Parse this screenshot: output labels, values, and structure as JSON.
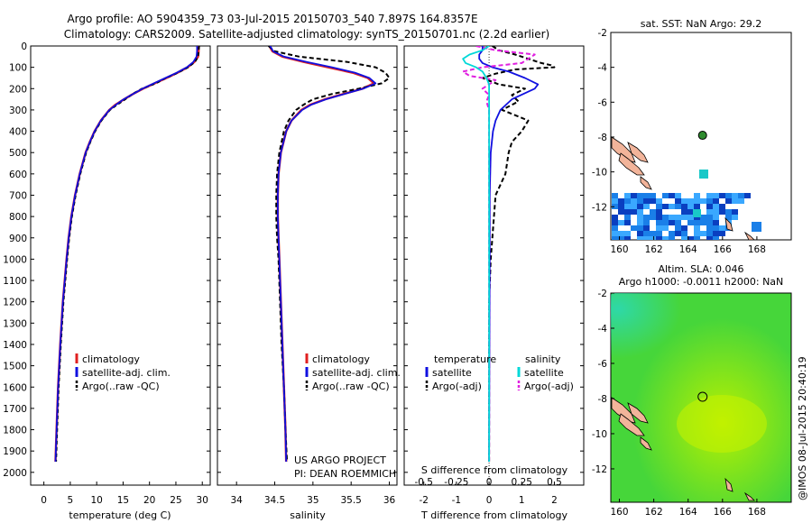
{
  "header": {
    "line1": "Argo profile: AO 5904359_73 03-Jul-2015 20150703_540 7.897S 164.8357E",
    "line2": "Climatology: CARS2009. Satellite-adjusted climatology: synTS_20150701.nc (2.2d earlier)"
  },
  "watermark": "@IMOS 08-Jul-2015 20:40:19",
  "project_note": {
    "line1": "US ARGO PROJECT",
    "line2": "PI: DEAN ROEMMICH"
  },
  "colors": {
    "climatology": "#e02020",
    "satellite": "#1010e0",
    "argo": "#000000",
    "salinity_satellite": "#00d8d8",
    "salinity_argo": "#e020e0",
    "sst_dark": "#0a3fc0",
    "sst_mid": "#1a7fe8",
    "sst_light": "#3aa8ff",
    "sst_cyan": "#19c8c8",
    "land": "#f2b49a",
    "float_marker": "#2e8b2e"
  },
  "depth_axis": {
    "ticks": [
      0,
      100,
      200,
      300,
      400,
      500,
      600,
      700,
      800,
      900,
      1000,
      1100,
      1200,
      1300,
      1400,
      1500,
      1600,
      1700,
      1800,
      1900,
      2000
    ],
    "range": [
      0,
      2060
    ]
  },
  "chart_data": [
    {
      "type": "line",
      "xlabel": "temperature (deg C)",
      "xticks": [
        "0",
        "5",
        "10",
        "15",
        "20",
        "25",
        "30"
      ],
      "xlim": [
        -2.5,
        31.5
      ],
      "ylim": [
        0,
        2060
      ],
      "legend": [
        "climatology",
        "satellite-adj. clim.",
        "Argo(..raw -QC)"
      ],
      "series": [
        {
          "name": "climatology",
          "depth": [
            0,
            25,
            50,
            75,
            100,
            125,
            150,
            175,
            200,
            225,
            250,
            275,
            300,
            350,
            400,
            450,
            500,
            600,
            700,
            800,
            900,
            1000,
            1200,
            1400,
            1600,
            1800,
            1950
          ],
          "values": [
            29.3,
            29.3,
            29.2,
            28.5,
            27.2,
            25.3,
            23.2,
            21.0,
            18.8,
            16.9,
            15.2,
            13.6,
            12.4,
            10.8,
            9.6,
            8.7,
            7.9,
            6.8,
            5.9,
            5.2,
            4.7,
            4.3,
            3.6,
            3.1,
            2.7,
            2.4,
            2.2
          ]
        },
        {
          "name": "satellite-adj. clim.",
          "depth": [
            0,
            25,
            50,
            75,
            100,
            125,
            150,
            175,
            200,
            225,
            250,
            275,
            300,
            350,
            400,
            450,
            500,
            600,
            700,
            800,
            900,
            1000,
            1200,
            1400,
            1600,
            1800,
            1950
          ],
          "values": [
            29.0,
            29.0,
            28.9,
            28.3,
            27.1,
            25.2,
            23.0,
            20.8,
            18.7,
            16.9,
            15.1,
            13.7,
            12.4,
            10.8,
            9.6,
            8.7,
            7.9,
            6.8,
            5.9,
            5.2,
            4.7,
            4.3,
            3.6,
            3.1,
            2.7,
            2.4,
            2.2
          ]
        },
        {
          "name": "Argo(..raw -QC)",
          "depth": [
            0,
            25,
            50,
            75,
            100,
            125,
            150,
            175,
            200,
            225,
            250,
            275,
            300,
            350,
            400,
            450,
            500,
            600,
            700,
            800,
            900,
            1000,
            1200,
            1400,
            1600,
            1800,
            1950
          ],
          "values": [
            29.4,
            29.3,
            29.2,
            28.6,
            27.3,
            25.4,
            23.1,
            21.2,
            18.6,
            16.8,
            15.4,
            13.9,
            12.5,
            10.9,
            9.7,
            8.8,
            8.0,
            6.9,
            6.0,
            5.3,
            4.8,
            4.4,
            3.7,
            3.2,
            2.8,
            2.5,
            2.3
          ]
        }
      ]
    },
    {
      "type": "line",
      "xlabel": "salinity",
      "xticks": [
        "34",
        "34.5",
        "35",
        "35.5",
        "36"
      ],
      "xlim": [
        33.75,
        36.1
      ],
      "ylim": [
        0,
        2060
      ],
      "legend": [
        "climatology",
        "satellite-adj. clim.",
        "Argo(..raw -QC)"
      ],
      "series": [
        {
          "name": "climatology",
          "depth": [
            0,
            25,
            50,
            75,
            100,
            125,
            150,
            175,
            200,
            225,
            250,
            275,
            300,
            350,
            400,
            500,
            600,
            700,
            800,
            900,
            1000,
            1200,
            1400,
            1600,
            1800,
            1950
          ],
          "values": [
            34.43,
            34.47,
            34.6,
            34.88,
            35.2,
            35.52,
            35.72,
            35.8,
            35.65,
            35.4,
            35.16,
            34.97,
            34.85,
            34.72,
            34.65,
            34.58,
            34.55,
            34.54,
            34.54,
            34.55,
            34.56,
            34.58,
            34.6,
            34.62,
            34.64,
            34.65
          ]
        },
        {
          "name": "satellite-adj. clim.",
          "depth": [
            0,
            25,
            50,
            75,
            100,
            125,
            150,
            175,
            200,
            225,
            250,
            275,
            300,
            350,
            400,
            500,
            600,
            700,
            800,
            900,
            1000,
            1200,
            1400,
            1600,
            1800,
            1950
          ],
          "values": [
            34.44,
            34.48,
            34.62,
            34.92,
            35.25,
            35.55,
            35.74,
            35.82,
            35.66,
            35.41,
            35.17,
            34.98,
            34.86,
            34.72,
            34.65,
            34.58,
            34.55,
            34.54,
            34.54,
            34.55,
            34.56,
            34.58,
            34.6,
            34.62,
            34.64,
            34.65
          ]
        },
        {
          "name": "Argo(..raw -QC)",
          "depth": [
            0,
            25,
            50,
            75,
            100,
            125,
            150,
            175,
            200,
            225,
            250,
            275,
            300,
            350,
            400,
            500,
            600,
            700,
            800,
            900,
            1000,
            1200,
            1400,
            1600,
            1800,
            1950
          ],
          "values": [
            34.42,
            34.5,
            34.82,
            35.45,
            35.82,
            35.95,
            36.0,
            35.9,
            35.6,
            35.25,
            35.0,
            34.88,
            34.78,
            34.68,
            34.62,
            34.56,
            34.53,
            34.52,
            34.52,
            34.53,
            34.55,
            34.57,
            34.59,
            34.62,
            34.64,
            34.66
          ]
        }
      ]
    },
    {
      "type": "line",
      "xlabel": "T difference from climatology",
      "xlabel2": "S difference from climatology",
      "xticks": [
        "-2",
        "-1",
        "0",
        "1",
        "2"
      ],
      "xticks2": [
        "-0.5",
        "-0.25",
        "0",
        "0.25",
        "0.5"
      ],
      "xlim": [
        -2.6,
        2.9
      ],
      "ylim": [
        0,
        2060
      ],
      "legend_temperature_title": "temperature",
      "legend_salinity_title": "salinity",
      "legend_temperature": [
        "satellite",
        "Argo(-adj)"
      ],
      "legend_salinity": [
        "satellite",
        "Argo(-adj)"
      ],
      "series": [
        {
          "name": "temperature satellite",
          "depth": [
            0,
            20,
            40,
            60,
            80,
            100,
            120,
            150,
            180,
            200,
            250,
            300,
            350,
            400,
            500,
            700,
            1000,
            1500,
            1950
          ],
          "values": [
            -0.2,
            -0.2,
            -0.3,
            -0.3,
            -0.2,
            0.1,
            0.6,
            1.1,
            1.5,
            1.4,
            0.7,
            0.35,
            0.2,
            0.12,
            0.05,
            0.02,
            0.02,
            0.01,
            0.0
          ]
        },
        {
          "name": "temperature Argo(-adj)",
          "depth": [
            0,
            20,
            40,
            60,
            80,
            90,
            100,
            110,
            130,
            150,
            180,
            200,
            230,
            260,
            300,
            350,
            400,
            450,
            500,
            600,
            700,
            800,
            900,
            1000,
            1200,
            1400,
            1600,
            1800,
            1950
          ],
          "values": [
            0.1,
            0.3,
            0.8,
            1.2,
            1.6,
            1.9,
            2.0,
            0.8,
            0.2,
            -0.2,
            0.3,
            1.1,
            0.7,
            0.9,
            0.4,
            1.2,
            1.0,
            0.7,
            0.6,
            0.5,
            0.2,
            0.15,
            0.1,
            0.05,
            0.0,
            0.0,
            0.0,
            0.0,
            0.0
          ]
        },
        {
          "name": "salinity satellite",
          "depth": [
            0,
            20,
            40,
            60,
            80,
            100,
            120,
            150,
            180,
            200,
            250,
            300,
            400,
            500,
            700,
            1000,
            1500,
            1950
          ],
          "values": [
            0.0,
            -0.05,
            -0.15,
            -0.2,
            -0.18,
            -0.1,
            -0.05,
            -0.02,
            0.0,
            0.0,
            0.0,
            0.0,
            0.0,
            0.0,
            0.0,
            0.0,
            0.0,
            0.0
          ]
        },
        {
          "name": "salinity Argo(-adj)",
          "depth": [
            0,
            20,
            40,
            60,
            80,
            100,
            120,
            140,
            160,
            180,
            200,
            230,
            260,
            300,
            400,
            500,
            700,
            1000,
            1500,
            1950
          ],
          "values": [
            -0.1,
            0.05,
            0.35,
            0.3,
            0.25,
            -0.05,
            -0.2,
            -0.15,
            0.05,
            0.0,
            -0.05,
            0.0,
            -0.02,
            0.0,
            0.0,
            0.0,
            0.0,
            0.0,
            0.0,
            0.0
          ]
        }
      ]
    },
    {
      "type": "heatmap",
      "title": "sat. SST: NaN Argo: 29.2",
      "xticks": [
        "160",
        "162",
        "164",
        "166",
        "168"
      ],
      "yticks": [
        "-2",
        "-4",
        "-6",
        "-8",
        "-10",
        "-12"
      ],
      "xlim": [
        159.5,
        170
      ],
      "ylim": [
        -13.9,
        -2
      ],
      "float_position": [
        164.84,
        -7.9
      ]
    },
    {
      "type": "heatmap",
      "title": "Altim. SLA: 0.046",
      "subtitle": "Argo h1000: -0.0011 h2000: NaN",
      "xticks": [
        "160",
        "162",
        "164",
        "166",
        "168"
      ],
      "yticks": [
        "-2",
        "-4",
        "-6",
        "-8",
        "-10",
        "-12"
      ],
      "xlim": [
        159.5,
        170
      ],
      "ylim": [
        -13.9,
        -2
      ],
      "float_position": [
        164.84,
        -7.9
      ]
    }
  ]
}
